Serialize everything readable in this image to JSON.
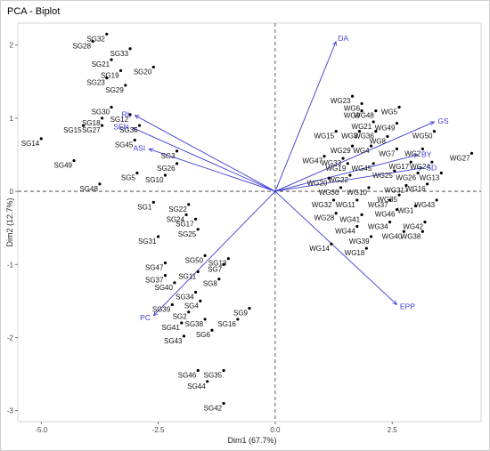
{
  "chart_data": {
    "type": "scatter",
    "title": "PCA - Biplot",
    "xlabel": "Dim1 (67.7%)",
    "ylabel": "Dim2 (12.7%)",
    "xlim": [
      -5.5,
      4.4
    ],
    "ylim": [
      -3.15,
      2.3
    ],
    "x_ticks": [
      -5.0,
      -2.5,
      0.0,
      2.5
    ],
    "x_tick_labels": [
      "-5.0",
      "-2.5",
      "0.0",
      "2.5"
    ],
    "y_ticks": [
      -3,
      -2,
      -1,
      0,
      1,
      2
    ],
    "y_tick_labels": [
      "-3",
      "-2",
      "-1",
      "0",
      "1",
      "2"
    ],
    "grid": false,
    "reference_lines": {
      "x": 0,
      "y": 0,
      "style": "dashed"
    },
    "arrow_color": "#3b3bd6",
    "point_color": "#000000",
    "points": [
      {
        "label": "SG32",
        "x": -3.6,
        "y": 2.15
      },
      {
        "label": "SG28",
        "x": -3.9,
        "y": 2.05
      },
      {
        "label": "SG33",
        "x": -3.1,
        "y": 1.95
      },
      {
        "label": "SG21",
        "x": -3.5,
        "y": 1.8
      },
      {
        "label": "SG19",
        "x": -3.3,
        "y": 1.65
      },
      {
        "label": "SG20",
        "x": -2.6,
        "y": 1.7
      },
      {
        "label": "SG23",
        "x": -3.6,
        "y": 1.55
      },
      {
        "label": "SG29",
        "x": -3.2,
        "y": 1.45
      },
      {
        "label": "SG30",
        "x": -3.5,
        "y": 1.15
      },
      {
        "label": "SG18",
        "x": -3.7,
        "y": 1.0
      },
      {
        "label": "SG12",
        "x": -3.1,
        "y": 1.05
      },
      {
        "label": "SG15",
        "x": -4.1,
        "y": 0.9
      },
      {
        "label": "SG27",
        "x": -3.7,
        "y": 0.9
      },
      {
        "label": "SG36",
        "x": -2.9,
        "y": 0.9
      },
      {
        "label": "SG45",
        "x": -3.0,
        "y": 0.7
      },
      {
        "label": "SG14",
        "x": -5.0,
        "y": 0.72
      },
      {
        "label": "SG3",
        "x": -2.1,
        "y": 0.55
      },
      {
        "label": "SG26",
        "x": -2.1,
        "y": 0.38
      },
      {
        "label": "SG5",
        "x": -2.95,
        "y": 0.25
      },
      {
        "label": "SG10",
        "x": -2.35,
        "y": 0.22
      },
      {
        "label": "SG49",
        "x": -4.3,
        "y": 0.42
      },
      {
        "label": "SG48",
        "x": -3.75,
        "y": 0.1
      },
      {
        "label": "SG1",
        "x": -2.6,
        "y": -0.15
      },
      {
        "label": "SG22",
        "x": -1.85,
        "y": -0.18
      },
      {
        "label": "SG24",
        "x": -1.9,
        "y": -0.32
      },
      {
        "label": "SG17",
        "x": -1.7,
        "y": -0.38
      },
      {
        "label": "SG25",
        "x": -1.65,
        "y": -0.52
      },
      {
        "label": "SG31",
        "x": -2.5,
        "y": -0.62
      },
      {
        "label": "SG50",
        "x": -1.5,
        "y": -0.88
      },
      {
        "label": "SG13",
        "x": -1.0,
        "y": -0.92
      },
      {
        "label": "SG7",
        "x": -1.1,
        "y": -1.0
      },
      {
        "label": "SG47",
        "x": -2.35,
        "y": -0.98
      },
      {
        "label": "SG37",
        "x": -2.35,
        "y": -1.15
      },
      {
        "label": "SG11",
        "x": -1.65,
        "y": -1.1
      },
      {
        "label": "SG8",
        "x": -1.2,
        "y": -1.2
      },
      {
        "label": "SG40",
        "x": -2.15,
        "y": -1.25
      },
      {
        "label": "SG34",
        "x": -1.7,
        "y": -1.38
      },
      {
        "label": "SG39",
        "x": -2.2,
        "y": -1.55
      },
      {
        "label": "SG4",
        "x": -1.6,
        "y": -1.5
      },
      {
        "label": "SG2",
        "x": -1.85,
        "y": -1.65
      },
      {
        "label": "SG9",
        "x": -0.55,
        "y": -1.6
      },
      {
        "label": "SG38",
        "x": -1.5,
        "y": -1.75
      },
      {
        "label": "SG16",
        "x": -0.8,
        "y": -1.75
      },
      {
        "label": "SG41",
        "x": -2.0,
        "y": -1.8
      },
      {
        "label": "SG6",
        "x": -1.35,
        "y": -1.9
      },
      {
        "label": "SG43",
        "x": -1.95,
        "y": -1.98
      },
      {
        "label": "SG46",
        "x": -1.65,
        "y": -2.45
      },
      {
        "label": "SG35",
        "x": -1.1,
        "y": -2.45
      },
      {
        "label": "SG44",
        "x": -1.45,
        "y": -2.6
      },
      {
        "label": "SG42",
        "x": -1.1,
        "y": -2.9
      },
      {
        "label": "WG23",
        "x": 1.65,
        "y": 1.3
      },
      {
        "label": "WG6",
        "x": 1.85,
        "y": 1.2
      },
      {
        "label": "WG5",
        "x": 2.65,
        "y": 1.15
      },
      {
        "label": "WG9",
        "x": 1.85,
        "y": 1.1
      },
      {
        "label": "WG48",
        "x": 2.15,
        "y": 1.1
      },
      {
        "label": "WG21",
        "x": 2.1,
        "y": 0.95
      },
      {
        "label": "WG49",
        "x": 2.6,
        "y": 0.93
      },
      {
        "label": "WG50",
        "x": 3.4,
        "y": 0.82
      },
      {
        "label": "WG15",
        "x": 1.3,
        "y": 0.82
      },
      {
        "label": "WG3",
        "x": 1.8,
        "y": 0.82
      },
      {
        "label": "WG36",
        "x": 2.15,
        "y": 0.82
      },
      {
        "label": "WG8",
        "x": 2.4,
        "y": 0.75
      },
      {
        "label": "WG29",
        "x": 1.65,
        "y": 0.62
      },
      {
        "label": "WG4",
        "x": 2.05,
        "y": 0.62
      },
      {
        "label": "WG7",
        "x": 2.6,
        "y": 0.58
      },
      {
        "label": "WG2",
        "x": 3.15,
        "y": 0.58
      },
      {
        "label": "WG27",
        "x": 4.2,
        "y": 0.52
      },
      {
        "label": "WG47",
        "x": 1.05,
        "y": 0.48
      },
      {
        "label": "WG33",
        "x": 1.45,
        "y": 0.45
      },
      {
        "label": "WG19",
        "x": 1.55,
        "y": 0.38
      },
      {
        "label": "WG45",
        "x": 2.1,
        "y": 0.38
      },
      {
        "label": "WG17",
        "x": 2.9,
        "y": 0.4
      },
      {
        "label": "WG24",
        "x": 3.35,
        "y": 0.4
      },
      {
        "label": "WG25",
        "x": 2.55,
        "y": 0.28
      },
      {
        "label": "WG26",
        "x": 3.05,
        "y": 0.25
      },
      {
        "label": "WG13",
        "x": 3.55,
        "y": 0.25
      },
      {
        "label": "WG20",
        "x": 1.15,
        "y": 0.18
      },
      {
        "label": "WG22",
        "x": 1.6,
        "y": 0.22
      },
      {
        "label": "WG16",
        "x": 3.25,
        "y": 0.1
      },
      {
        "label": "WG31",
        "x": 2.8,
        "y": 0.08
      },
      {
        "label": "WG30",
        "x": 1.4,
        "y": 0.05
      },
      {
        "label": "WG10",
        "x": 2.0,
        "y": 0.05
      },
      {
        "label": "WG35",
        "x": 2.65,
        "y": -0.05
      },
      {
        "label": "WG32",
        "x": 1.25,
        "y": -0.12
      },
      {
        "label": "WG11",
        "x": 1.75,
        "y": -0.12
      },
      {
        "label": "WG37",
        "x": 2.45,
        "y": -0.12
      },
      {
        "label": "WG43",
        "x": 3.45,
        "y": -0.12
      },
      {
        "label": "WG1",
        "x": 3.0,
        "y": -0.2
      },
      {
        "label": "WG28",
        "x": 1.3,
        "y": -0.3
      },
      {
        "label": "WG41",
        "x": 1.85,
        "y": -0.32
      },
      {
        "label": "WG46",
        "x": 2.6,
        "y": -0.25
      },
      {
        "label": "WG34",
        "x": 2.45,
        "y": -0.42
      },
      {
        "label": "WG42",
        "x": 3.2,
        "y": -0.42
      },
      {
        "label": "WG44",
        "x": 1.75,
        "y": -0.48
      },
      {
        "label": "WG40",
        "x": 2.75,
        "y": -0.55
      },
      {
        "label": "WG38",
        "x": 3.15,
        "y": -0.55
      },
      {
        "label": "WG39",
        "x": 2.05,
        "y": -0.62
      },
      {
        "label": "WG14",
        "x": 1.2,
        "y": -0.72
      },
      {
        "label": "WG18",
        "x": 1.95,
        "y": -0.78
      }
    ],
    "variables": [
      {
        "label": "DA",
        "x": 1.3,
        "y": 2.05
      },
      {
        "label": "GS",
        "x": 3.4,
        "y": 0.95
      },
      {
        "label": "RL",
        "x": -3.0,
        "y": 1.04
      },
      {
        "label": "SEN",
        "x": -3.05,
        "y": 0.87
      },
      {
        "label": "ASI",
        "x": -2.7,
        "y": 0.58
      },
      {
        "label": "BY",
        "x": 3.05,
        "y": 0.5
      },
      {
        "label": "SD",
        "x": 3.15,
        "y": 0.32
      },
      {
        "label": "EPP",
        "x": 2.6,
        "y": -1.55
      },
      {
        "label": "PC",
        "x": -2.6,
        "y": -1.7
      }
    ]
  }
}
